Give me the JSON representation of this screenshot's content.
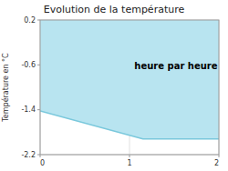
{
  "chart_data": {
    "type": "area",
    "title": "Evolution de la température",
    "y_label": "Température en °C",
    "annotations": [
      {
        "text": "heure par heure",
        "x": 1.52,
        "y": -0.62
      }
    ],
    "x": [
      0,
      1.15,
      2
    ],
    "series": [
      {
        "type": "area",
        "color": "#b8e4f0",
        "values": [
          -1.42,
          -1.92,
          -1.92
        ]
      },
      {
        "type": "line",
        "color": "#7ac8dc",
        "values": [
          -1.42,
          -1.92,
          -1.92
        ]
      }
    ],
    "xlim": [
      0,
      2
    ],
    "ylim": [
      -2.2,
      0.2
    ],
    "xticks": [
      0,
      1,
      2
    ],
    "yticks": [
      0.2,
      -0.6,
      -1.4,
      -2.2
    ],
    "grid": true
  }
}
